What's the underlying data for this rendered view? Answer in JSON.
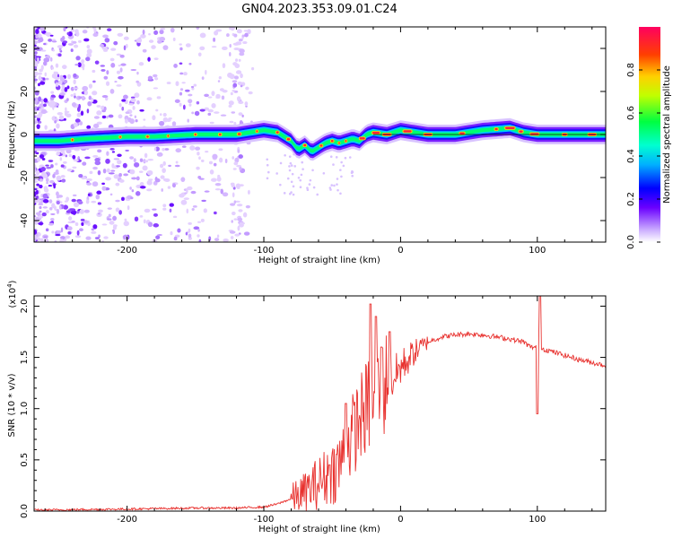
{
  "title": "GN04.2023.353.09.01.C24",
  "chart_data": [
    {
      "type": "heatmap",
      "name": "spectrogram",
      "xlabel": "Height of straight line (km)",
      "ylabel": "Frequency (Hz)",
      "xlim": [
        -268,
        150
      ],
      "ylim": [
        -50,
        50
      ],
      "xticks": [
        -200,
        -100,
        0,
        100
      ],
      "yticks": [
        -40,
        -20,
        0,
        20,
        40
      ],
      "colorbar": {
        "label": "Normalized spectral amplitude",
        "range": [
          0,
          1
        ],
        "ticks": [
          0.0,
          0.2,
          0.4,
          0.6,
          0.8
        ],
        "tick_labels": [
          "0.0",
          "0.2",
          "0.4",
          "0.6",
          "0.8"
        ]
      },
      "ridge": {
        "x": [
          -268,
          -250,
          -230,
          -200,
          -180,
          -150,
          -120,
          -100,
          -90,
          -80,
          -75,
          -70,
          -65,
          -60,
          -55,
          -50,
          -45,
          -40,
          -35,
          -30,
          -25,
          -20,
          -10,
          0,
          20,
          40,
          60,
          80,
          90,
          100,
          120,
          150
        ],
        "freq": [
          -3,
          -3,
          -2,
          -1,
          -1,
          0,
          0,
          2,
          1,
          -3,
          -7,
          -5,
          -8,
          -6,
          -4,
          -3,
          -4,
          -3,
          -2,
          -3,
          0,
          1,
          0,
          2,
          0,
          0,
          2,
          3,
          1,
          0,
          0,
          0
        ]
      }
    },
    {
      "type": "line",
      "name": "snr",
      "xlabel": "Height of straight line (km)",
      "ylabel": "SNR (10 * v/v)",
      "y_multiplier": "(x10",
      "y_multiplier_exp": "4",
      "xlim": [
        -268,
        150
      ],
      "ylim": [
        0,
        2.1
      ],
      "xticks": [
        -200,
        -100,
        0,
        100
      ],
      "yticks": [
        0.0,
        0.5,
        1.0,
        1.5,
        2.0
      ],
      "ytick_labels": [
        "0.0",
        "0.5",
        "1.0",
        "1.5",
        "2.0"
      ],
      "color": "#e8312e",
      "envelope": {
        "x": [
          -268,
          -200,
          -150,
          -120,
          -100,
          -90,
          -80,
          -70,
          -60,
          -50,
          -45,
          -40,
          -35,
          -30,
          -25,
          -20,
          -15,
          -10,
          -5,
          0,
          10,
          20,
          30,
          40,
          50,
          60,
          70,
          80,
          90,
          95,
          100,
          110,
          120,
          130,
          140,
          150
        ],
        "y": [
          0.01,
          0.02,
          0.03,
          0.03,
          0.04,
          0.07,
          0.12,
          0.18,
          0.28,
          0.38,
          0.45,
          0.6,
          0.75,
          0.9,
          1.0,
          1.1,
          1.2,
          1.25,
          1.3,
          1.4,
          1.55,
          1.65,
          1.7,
          1.72,
          1.73,
          1.72,
          1.7,
          1.68,
          1.65,
          1.6,
          1.6,
          1.56,
          1.52,
          1.48,
          1.45,
          1.42
        ]
      },
      "spikes": [
        {
          "x": -22,
          "y": 2.02
        },
        {
          "x": -18,
          "y": 1.9
        },
        {
          "x": -40,
          "y": 1.05
        },
        {
          "x": -52,
          "y": 0.45
        },
        {
          "x": -14,
          "y": 1.6
        },
        {
          "x": -8,
          "y": 1.75
        },
        {
          "x": 102,
          "y": 2.1
        },
        {
          "x": 100,
          "y": 0.95
        }
      ]
    }
  ]
}
